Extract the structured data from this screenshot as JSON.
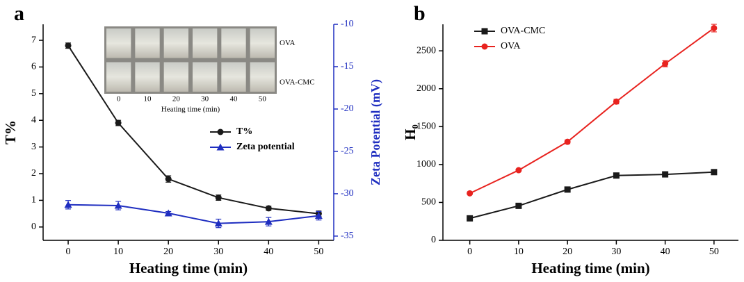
{
  "chart_data": [
    {
      "type": "line",
      "panel_label": "a",
      "x": [
        0,
        10,
        20,
        30,
        40,
        50
      ],
      "xlim": [
        -5,
        53
      ],
      "xticks": [
        0,
        10,
        20,
        30,
        40,
        50
      ],
      "ylim": [
        -0.5,
        7.6
      ],
      "yticks": [
        0,
        1,
        2,
        3,
        4,
        5,
        6,
        7
      ],
      "y2lim": [
        -35.5,
        -10
      ],
      "y2ticks": [
        -35,
        -30,
        -25,
        -20,
        -15,
        -10
      ],
      "xlabel": "Heating time (min)",
      "ylabel": "T%",
      "y2label": "Zeta Potential (mV)",
      "legend": "center right",
      "series": [
        {
          "name": "T%",
          "color": "#1a1a1a",
          "marker": "circle",
          "values": [
            6.8,
            3.9,
            1.8,
            1.1,
            0.7,
            0.5
          ],
          "errors": [
            0.1,
            0.1,
            0.12,
            0.1,
            0.08,
            0.1
          ]
        },
        {
          "name": "Zeta potential",
          "color": "#1f2ec0",
          "marker": "triangle",
          "axis": "y2",
          "values": [
            -31.3,
            -31.4,
            -32.3,
            -33.5,
            -33.3,
            -32.6
          ],
          "errors": [
            0.5,
            0.5,
            0.2,
            0.5,
            0.5,
            0.5
          ]
        }
      ],
      "inset": {
        "row_labels": [
          "OVA",
          "OVA-CMC"
        ],
        "column_labels": [
          0,
          10,
          20,
          30,
          40,
          50
        ],
        "xlabel": "Heating time (min)"
      }
    },
    {
      "type": "line",
      "panel_label": "b",
      "x": [
        0,
        10,
        20,
        30,
        40,
        50
      ],
      "xlim": [
        -5.5,
        55
      ],
      "xticks": [
        0,
        10,
        20,
        30,
        40,
        50
      ],
      "ylim": [
        0,
        2850
      ],
      "yticks": [
        0,
        500,
        1000,
        1500,
        2000,
        2500
      ],
      "xlabel": "Heating time (min)",
      "ylabel": "H₀",
      "legend": "upper left",
      "series": [
        {
          "name": "OVA-CMC",
          "color": "#1a1a1a",
          "marker": "square",
          "values": [
            290,
            455,
            670,
            855,
            870,
            900
          ],
          "errors": [
            10,
            12,
            12,
            15,
            15,
            15
          ]
        },
        {
          "name": "OVA",
          "color": "#e8231f",
          "marker": "circle",
          "values": [
            620,
            925,
            1300,
            1830,
            2330,
            2800
          ],
          "errors": [
            12,
            15,
            25,
            30,
            40,
            50
          ]
        }
      ]
    }
  ]
}
